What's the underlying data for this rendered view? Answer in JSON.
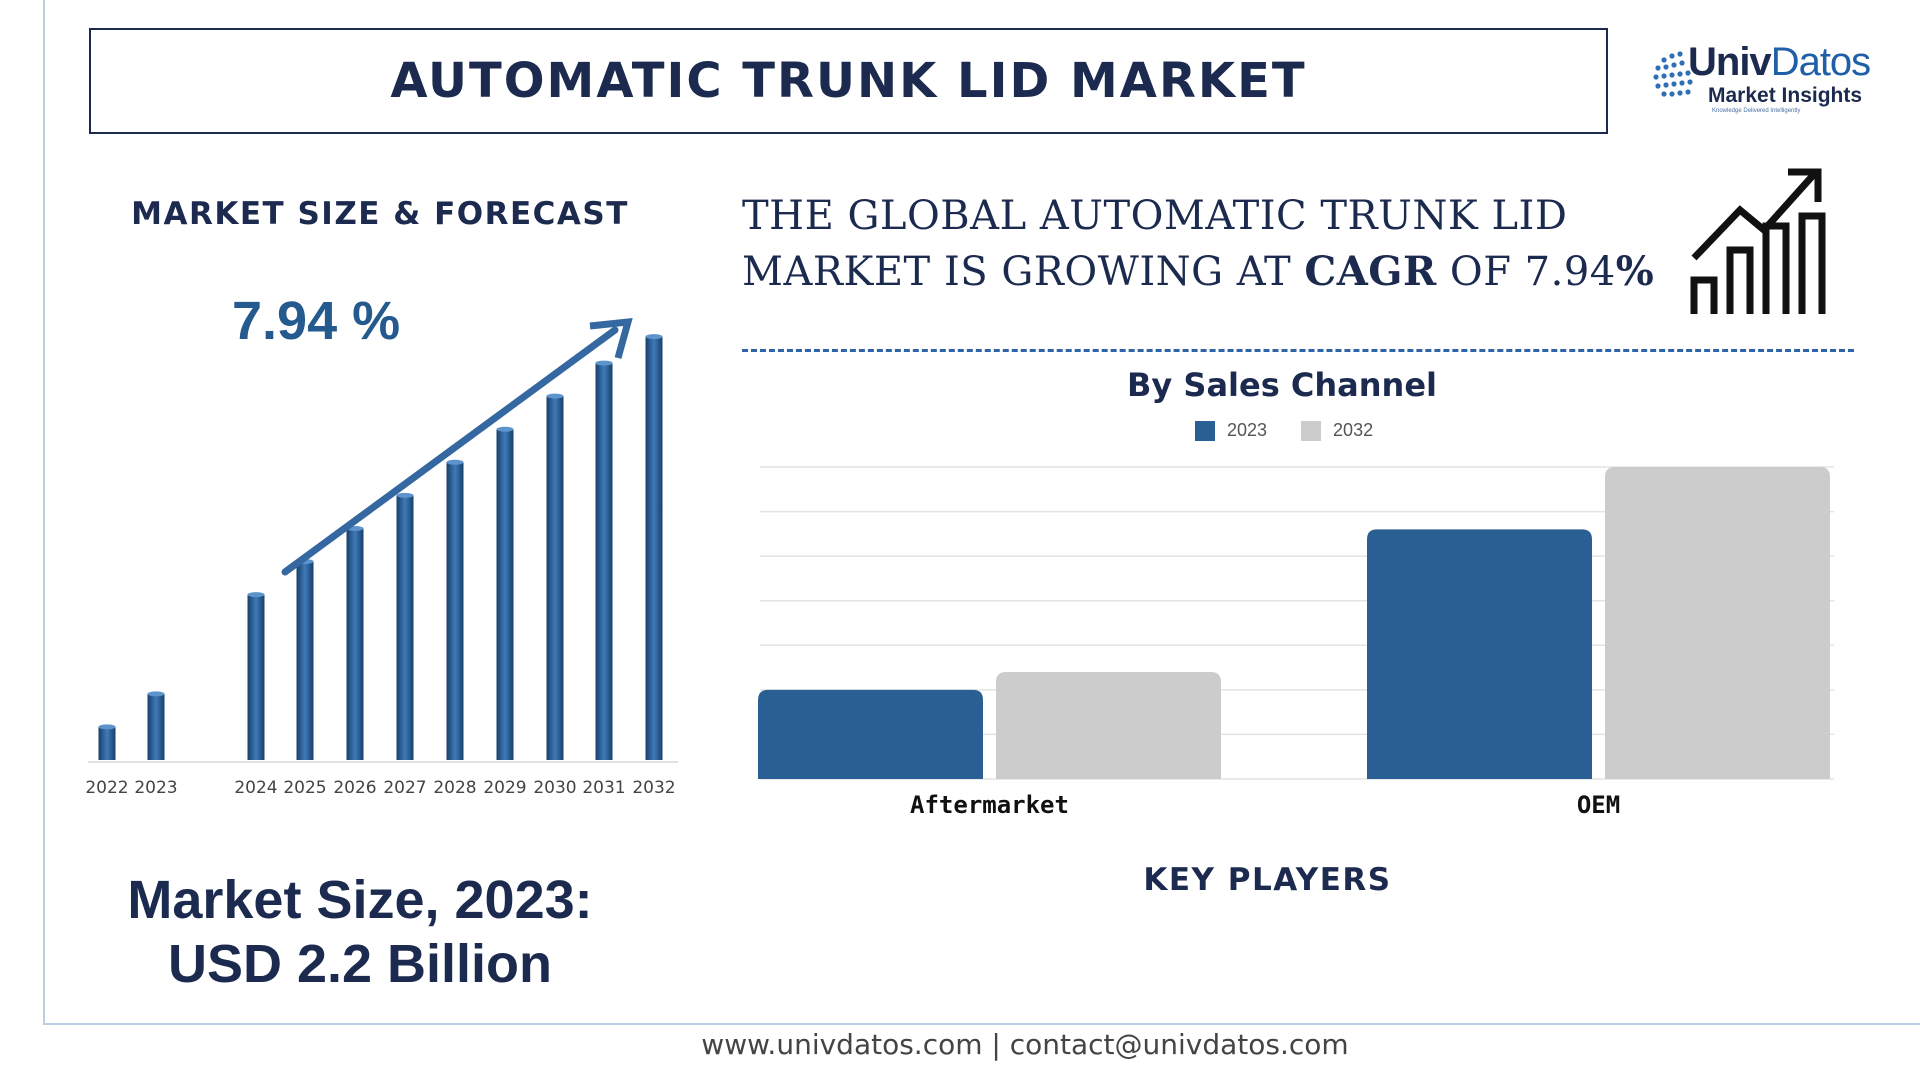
{
  "title": "AUTOMATIC TRUNK LID MARKET",
  "logo": {
    "brand_a": "Univ",
    "brand_b": "Datos",
    "sub": "Market Insights",
    "tag": "Knowledge Delivered Intelligently"
  },
  "left": {
    "heading": "MARKET SIZE & FORECAST",
    "cagr": "7.94 %",
    "market_size_line1": "Market Size, 2023:",
    "market_size_line2": "USD 2.2 Billion"
  },
  "headline": {
    "line1": "THE GLOBAL AUTOMATIC TRUNK LID",
    "line2_pre": "MARKET IS GROWING AT ",
    "line2_bold": "CAGR",
    "line2_mid": " OF  7.94",
    "line2_pct": "%"
  },
  "key_players": "KEY PLAYERS",
  "footer": "www.univdatos.com | contact@univdatos.com",
  "colors": {
    "navy": "#1b2a4e",
    "blue": "#2a5f93",
    "grey": "#cccccc",
    "dash": "#2f64a8"
  },
  "icons": [
    "globe-logo-icon",
    "growth-chart-icon",
    "trend-arrow-icon"
  ],
  "chart_data": [
    {
      "type": "bar",
      "categories": [
        "2022",
        "2023",
        "2024",
        "2025",
        "2026",
        "2027",
        "2028",
        "2029",
        "2030",
        "2031",
        "2032"
      ],
      "values": [
        1.0,
        2.0,
        5.0,
        6.0,
        7.0,
        8.0,
        9.0,
        10.0,
        11.0,
        12.0,
        12.8
      ],
      "ylim": [
        0,
        13
      ],
      "annotation": "7.94 %",
      "grid": false
    },
    {
      "type": "bar",
      "title": "By Sales Channel",
      "categories": [
        "Aftermarket",
        "OEM"
      ],
      "series": [
        {
          "name": "2023",
          "values": [
            20,
            56
          ],
          "color": "#2a5f93"
        },
        {
          "name": "2032",
          "values": [
            24,
            70
          ],
          "color": "#cccccc"
        }
      ],
      "ylim": [
        0,
        70
      ],
      "grid": true,
      "legend": "top-center"
    }
  ]
}
